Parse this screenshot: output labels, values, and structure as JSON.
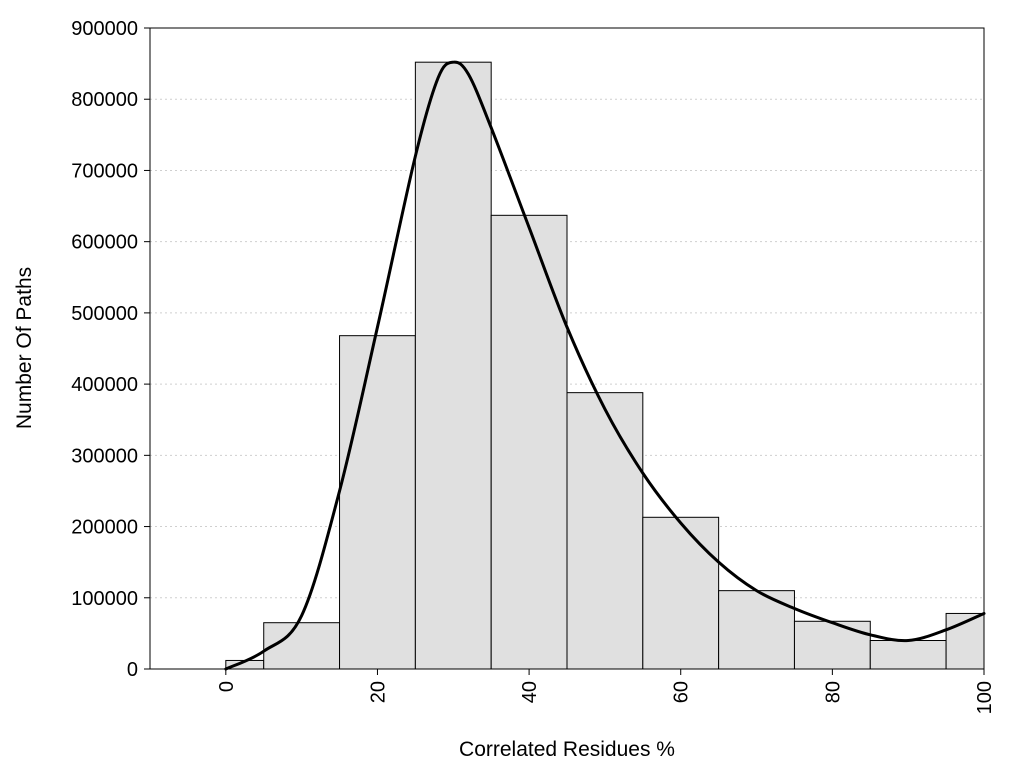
{
  "chart_data": {
    "type": "bar",
    "title": "",
    "xlabel": "Correlated Residues %",
    "ylabel": "Number Of Paths",
    "xlim": [
      -10,
      100
    ],
    "ylim": [
      0,
      900000
    ],
    "xticks": [
      "0",
      "20",
      "40",
      "60",
      "80",
      "100"
    ],
    "yticks": [
      "0",
      "100000",
      "200000",
      "300000",
      "400000",
      "500000",
      "600000",
      "700000",
      "800000",
      "900000"
    ],
    "grid": "horizontal dotted",
    "bins": [
      {
        "from": 0,
        "to": 5,
        "value": 12000
      },
      {
        "from": 5,
        "to": 15,
        "value": 65000
      },
      {
        "from": 15,
        "to": 25,
        "value": 468000
      },
      {
        "from": 25,
        "to": 35,
        "value": 852000
      },
      {
        "from": 35,
        "to": 45,
        "value": 637000
      },
      {
        "from": 45,
        "to": 55,
        "value": 388000
      },
      {
        "from": 55,
        "to": 65,
        "value": 213000
      },
      {
        "from": 65,
        "to": 75,
        "value": 110000
      },
      {
        "from": 75,
        "to": 85,
        "value": 67000
      },
      {
        "from": 85,
        "to": 95,
        "value": 40000
      },
      {
        "from": 95,
        "to": 100,
        "value": 78000
      }
    ],
    "curve": {
      "x": [
        0,
        5,
        10,
        15,
        20,
        25,
        28,
        30,
        32,
        35,
        40,
        45,
        50,
        55,
        60,
        65,
        70,
        75,
        80,
        85,
        90,
        95,
        100
      ],
      "y": [
        0,
        25000,
        75000,
        250000,
        480000,
        720000,
        830000,
        852000,
        835000,
        760000,
        620000,
        480000,
        365000,
        275000,
        205000,
        150000,
        110000,
        85000,
        65000,
        48000,
        40000,
        55000,
        78000
      ]
    },
    "colors": {
      "bar_fill": "#e0e0e0",
      "bar_stroke": "#000000",
      "curve": "#000000"
    }
  }
}
